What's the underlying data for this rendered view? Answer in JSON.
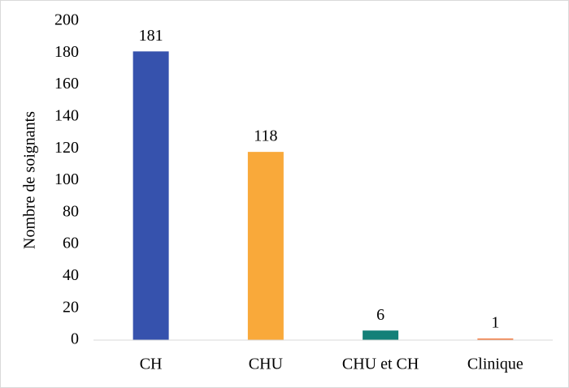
{
  "chart_data": {
    "type": "bar",
    "y_label": "Nombre de soignants",
    "categories": [
      "CH",
      "CHU",
      "CHU et CH",
      "Clinique"
    ],
    "values": [
      181,
      118,
      6,
      1
    ],
    "colors": [
      "#3652ad",
      "#f9a93a",
      "#138078",
      "#f47a3f"
    ],
    "ylim": [
      0,
      200
    ],
    "yticks": [
      0,
      20,
      40,
      60,
      80,
      100,
      120,
      140,
      160,
      180,
      200
    ],
    "grid": false
  }
}
